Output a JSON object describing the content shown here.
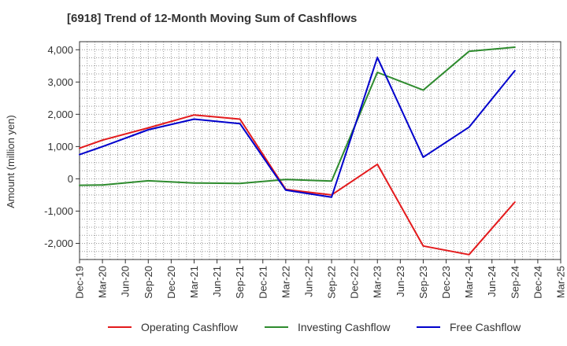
{
  "chart_data": {
    "type": "line",
    "title": "[6918]  Trend of 12-Month Moving Sum of Cashflows",
    "xlabel": "",
    "ylabel": "Amount (million yen)",
    "categories": [
      "Dec-19",
      "Mar-20",
      "Jun-20",
      "Sep-20",
      "Dec-20",
      "Mar-21",
      "Jun-21",
      "Sep-21",
      "Dec-21",
      "Mar-22",
      "Jun-22",
      "Sep-22",
      "Dec-22",
      "Mar-23",
      "Jun-23",
      "Sep-23",
      "Dec-23",
      "Mar-24",
      "Jun-24",
      "Sep-24",
      "Dec-24",
      "Mar-25"
    ],
    "ylim": [
      -2500,
      4250
    ],
    "yticks": [
      -2000,
      -1000,
      0,
      1000,
      2000,
      3000,
      4000
    ],
    "ytick_labels": [
      "-2,000",
      "-1,000",
      "0",
      "1,000",
      "2,000",
      "3,000",
      "4,000"
    ],
    "grid": true,
    "legend_position": "bottom",
    "series": [
      {
        "name": "Operating Cashflow",
        "color": "#e31a1c",
        "values": [
          950,
          1200,
          null,
          1580,
          null,
          1980,
          null,
          1850,
          null,
          -330,
          null,
          -500,
          null,
          450,
          null,
          -2080,
          null,
          -2350,
          null,
          -720,
          null,
          null
        ]
      },
      {
        "name": "Investing Cashflow",
        "color": "#2e8b2e",
        "values": [
          -200,
          -190,
          null,
          -60,
          null,
          -130,
          null,
          -140,
          null,
          -20,
          null,
          -70,
          null,
          3300,
          null,
          2750,
          null,
          3950,
          null,
          4080,
          null,
          null
        ]
      },
      {
        "name": "Free Cashflow",
        "color": "#0000cc",
        "values": [
          750,
          1000,
          null,
          1520,
          null,
          1850,
          null,
          1710,
          null,
          -350,
          null,
          -570,
          null,
          3760,
          null,
          670,
          null,
          1600,
          null,
          3350,
          null,
          null
        ]
      }
    ]
  }
}
